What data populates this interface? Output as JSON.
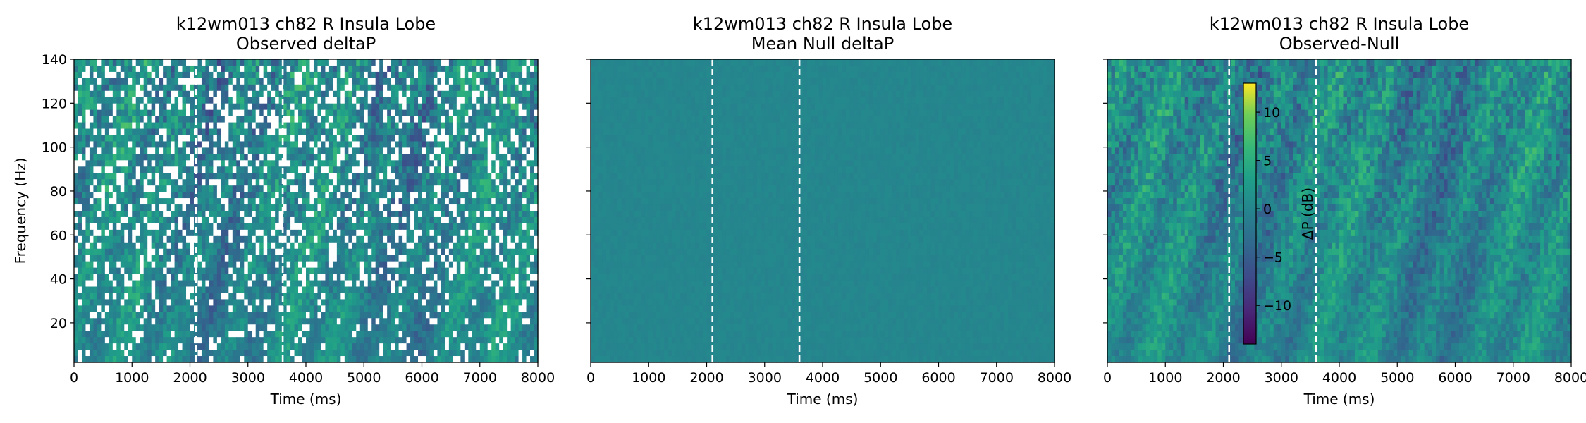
{
  "chart_data": [
    {
      "type": "heatmap",
      "title": "k12wm013 ch82 R Insula Lobe",
      "subtitle": "Observed deltaP",
      "xlabel": "Time (ms)",
      "ylabel": "Frequency (Hz)",
      "xlim": [
        0,
        8000
      ],
      "ylim": [
        2,
        140
      ],
      "xticks": [
        "0",
        "1000",
        "2000",
        "3000",
        "4000",
        "5000",
        "6000",
        "7000",
        "8000"
      ],
      "yticks": [
        "20",
        "40",
        "60",
        "80",
        "100",
        "120",
        "140"
      ],
      "markers_ms": [
        2100,
        3600
      ],
      "masked_white_cells": true,
      "colormap": "viridis"
    },
    {
      "type": "heatmap",
      "title": "k12wm013 ch82 R Insula Lobe",
      "subtitle": "Mean Null deltaP",
      "xlabel": "Time (ms)",
      "ylabel": "",
      "xlim": [
        0,
        8000
      ],
      "ylim": [
        2,
        140
      ],
      "xticks": [
        "0",
        "1000",
        "2000",
        "3000",
        "4000",
        "5000",
        "6000",
        "7000",
        "8000"
      ],
      "yticks": [
        "20",
        "40",
        "60",
        "80",
        "100",
        "120",
        "140"
      ],
      "markers_ms": [
        2100,
        3600
      ],
      "approx_value_db": 0,
      "colormap": "viridis"
    },
    {
      "type": "heatmap",
      "title": "k12wm013 ch82 R Insula Lobe",
      "subtitle": "Observed-Null",
      "xlabel": "Time (ms)",
      "ylabel": "",
      "xlim": [
        0,
        8000
      ],
      "ylim": [
        2,
        140
      ],
      "xticks": [
        "0",
        "1000",
        "2000",
        "3000",
        "4000",
        "5000",
        "6000",
        "7000",
        "8000"
      ],
      "yticks": [
        "20",
        "40",
        "60",
        "80",
        "100",
        "120",
        "140"
      ],
      "markers_ms": [
        2100,
        3600
      ],
      "colormap": "viridis",
      "colorbar": {
        "label": "ΔP (dB)",
        "range": [
          -14,
          13
        ],
        "ticks": [
          "10",
          "5",
          "0",
          "−5",
          "−10"
        ]
      }
    }
  ]
}
